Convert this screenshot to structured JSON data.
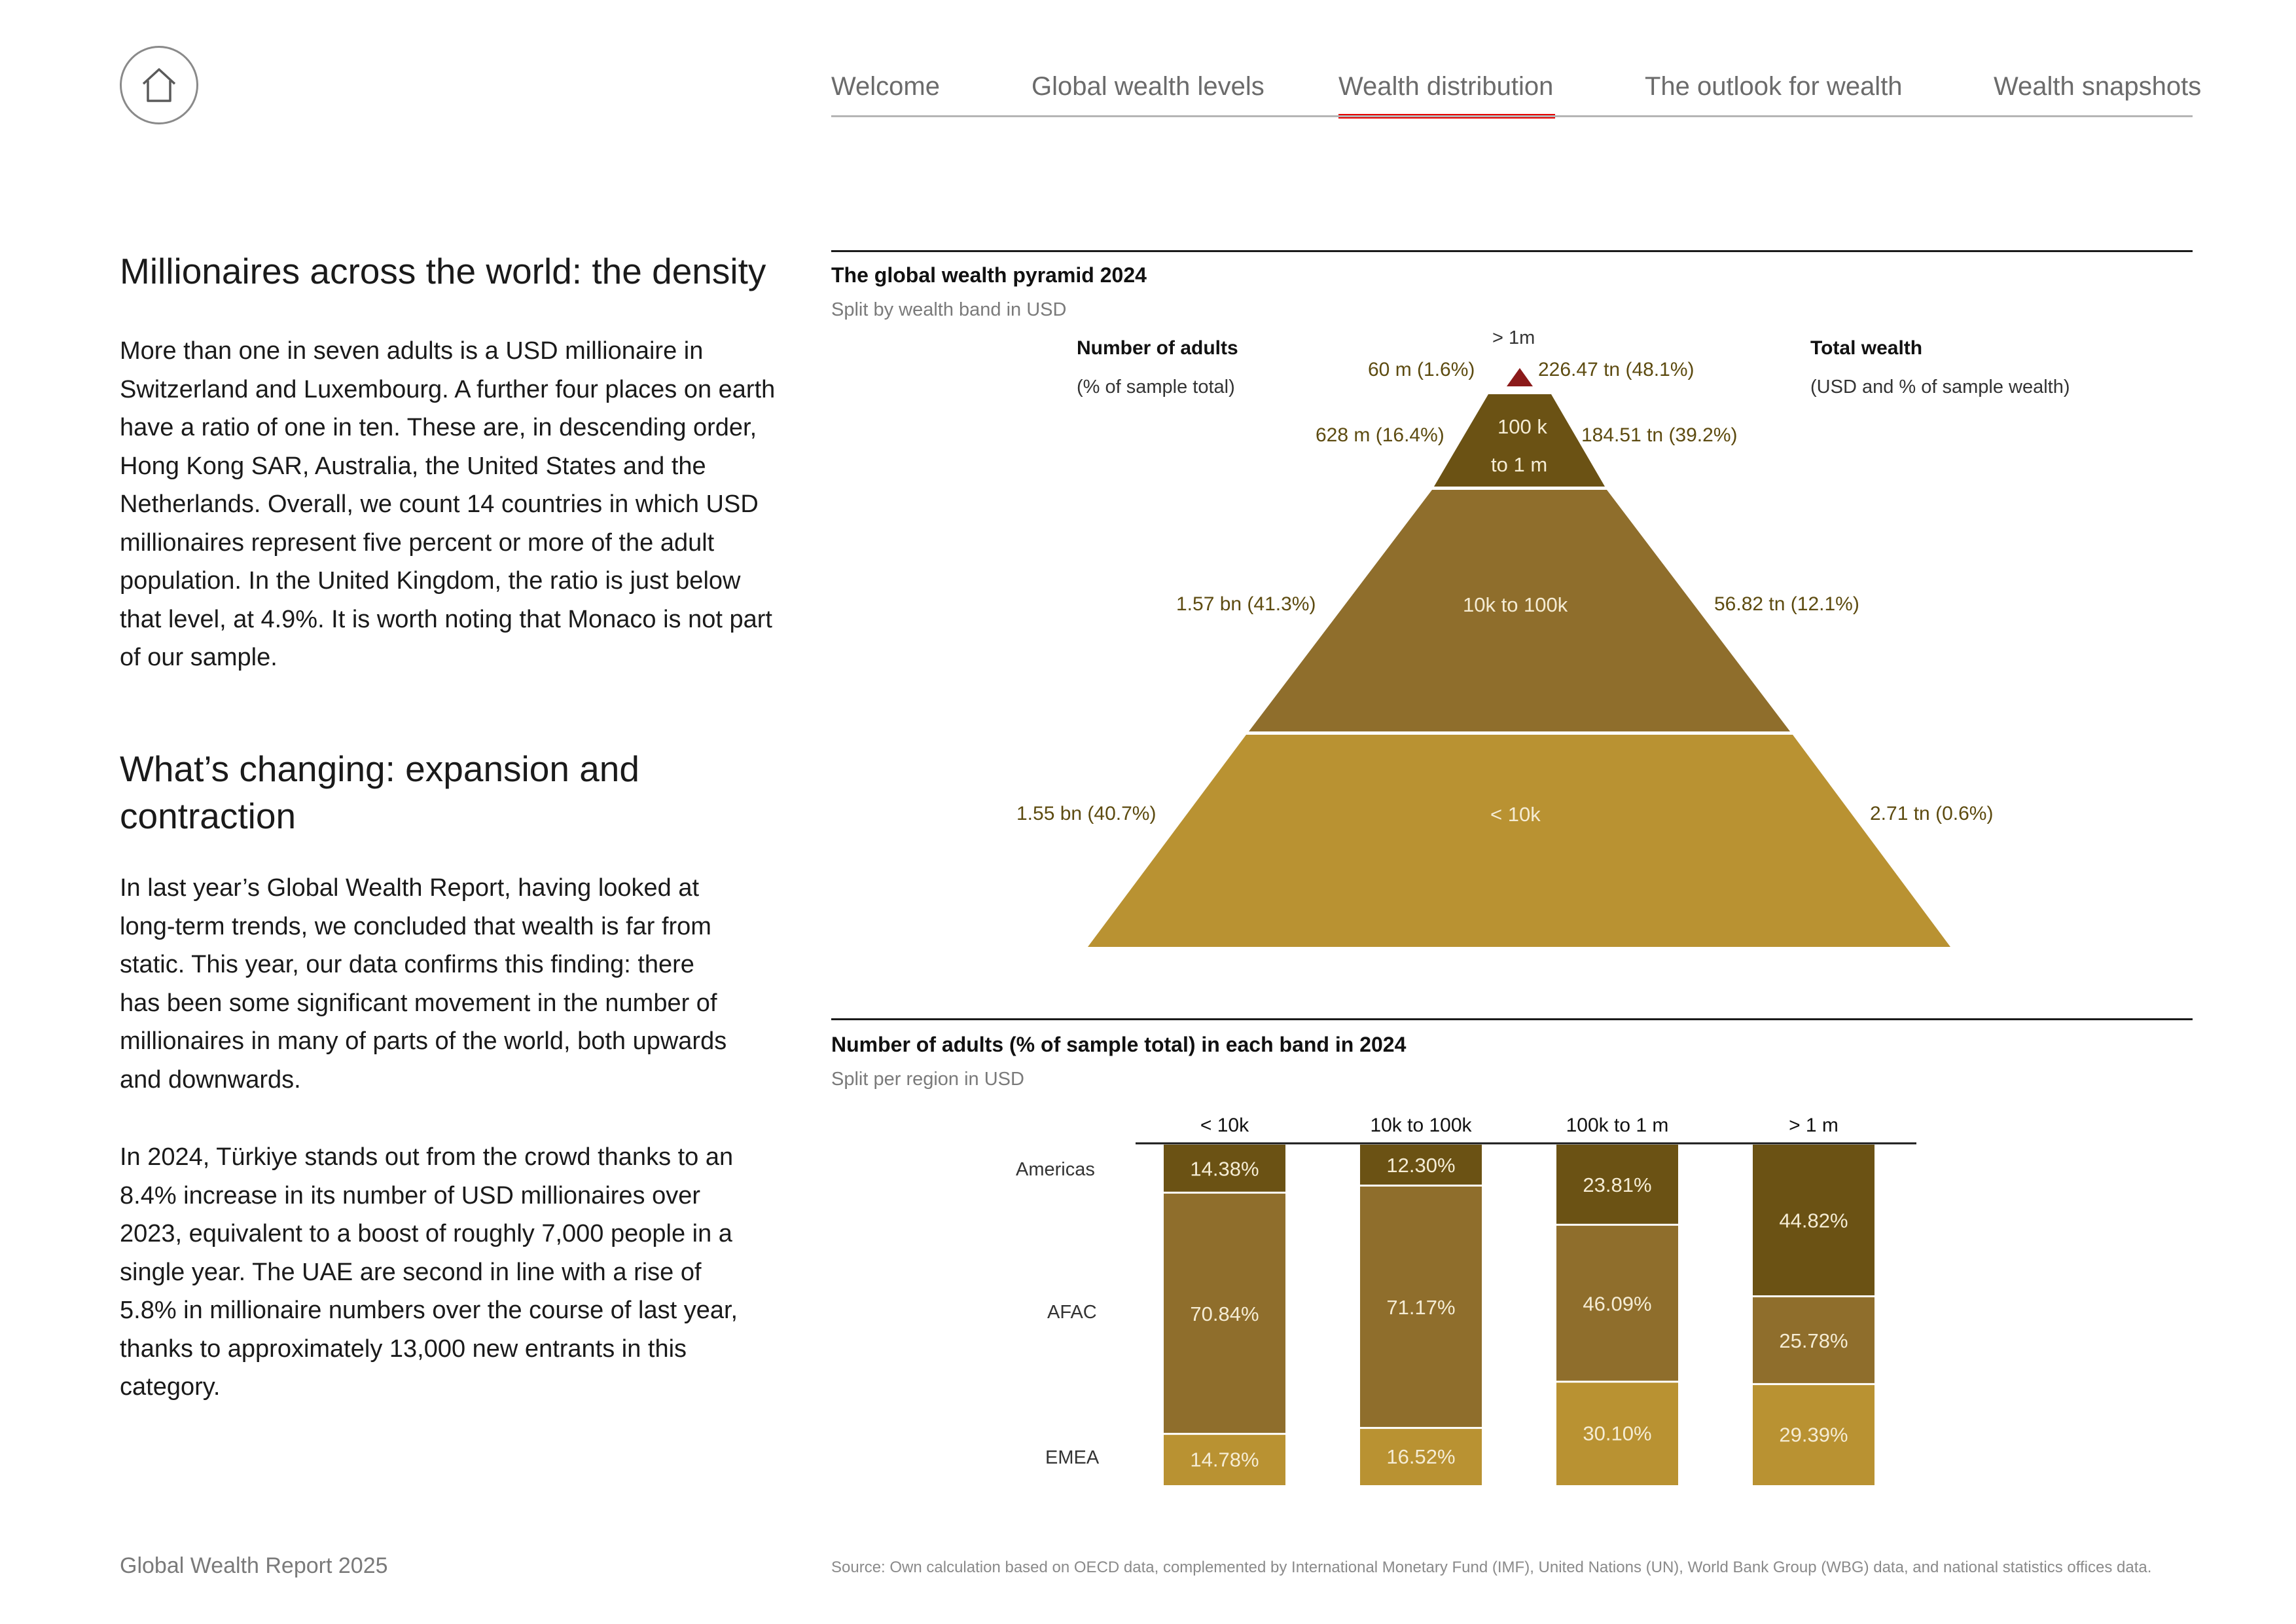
{
  "nav": {
    "items": [
      "Welcome",
      "Global wealth levels",
      "Wealth distribution",
      "The outlook for wealth",
      "Wealth snapshots"
    ],
    "active_index": 2
  },
  "colors": {
    "accent": "#e60000",
    "dark": "#6b5214",
    "mid": "#8f6e2c",
    "light": "#b99232",
    "top": "#8b1a1a"
  },
  "left": {
    "heading1": "Millionaires across the world: the density",
    "para1": "More than one in seven adults is a USD millionaire in Switzerland and Luxembourg. A further four places on earth have a ratio of one in ten. These are, in descending order, Hong Kong SAR, Australia, the United States and the Netherlands. Overall, we count 14 countries in which USD millionaires represent five percent or more of the adult population. In the United Kingdom, the ratio is just below that level, at 4.9%. It is worth noting that Monaco is not part of our sample.",
    "heading2": "What’s changing: expansion and contraction",
    "para2": "In last year’s Global Wealth Report, having looked at long-term trends, we concluded that wealth is far from static. This year, our data confirms this finding: there has been some significant movement in the number of millionaires in many of parts of the world, both upwards and downwards.",
    "para3": "In 2024, Türkiye stands out from the crowd thanks to an 8.4% increase in its number of USD millionaires over 2023, equivalent to a boost of roughly 7,000 people in a single year. The UAE are second in line with a rise of 5.8% in millionaire numbers over the course of last year, thanks to approximately 13,000 new entrants in this category."
  },
  "chart_data": [
    {
      "type": "pyramid",
      "title": "The global wealth pyramid 2024",
      "subtitle": "Split by wealth band in USD",
      "left_header": "Number of adults",
      "left_sub": "(% of sample total)",
      "right_header": "Total wealth",
      "right_sub": "(USD and % of sample wealth)",
      "bands": [
        {
          "label": "> 1m",
          "adults": "60 m (1.6%)",
          "wealth": "226.47 tn (48.1%)",
          "adults_pct": 1.6,
          "wealth_pct": 48.1
        },
        {
          "label": "100 k to 1 m",
          "label_lines": [
            "100 k",
            "to 1 m"
          ],
          "adults": "628 m (16.4%)",
          "wealth": "184.51 tn (39.2%)",
          "adults_pct": 16.4,
          "wealth_pct": 39.2
        },
        {
          "label": "10k to 100k",
          "adults": "1.57 bn (41.3%)",
          "wealth": "56.82 tn (12.1%)",
          "adults_pct": 41.3,
          "wealth_pct": 12.1
        },
        {
          "label": "< 10k",
          "adults": "1.55 bn (40.7%)",
          "wealth": "2.71 tn (0.6%)",
          "adults_pct": 40.7,
          "wealth_pct": 0.6
        }
      ]
    },
    {
      "type": "bar",
      "stacked": true,
      "title": "Number of adults (% of sample total) in each band in 2024",
      "subtitle": "Split per region in USD",
      "categories": [
        "< 10k",
        "10k to 100k",
        "100k to 1 m",
        "> 1 m"
      ],
      "series": [
        {
          "name": "Americas",
          "values": [
            14.38,
            12.3,
            23.81,
            44.82
          ],
          "labels": [
            "14.38%",
            "12.30%",
            "23.81%",
            "44.82%"
          ]
        },
        {
          "name": "AFAC",
          "values": [
            70.84,
            71.17,
            46.09,
            25.78
          ],
          "labels": [
            "70.84%",
            "71.17%",
            "46.09%",
            "25.78%"
          ]
        },
        {
          "name": "EMEA",
          "values": [
            14.78,
            16.52,
            30.1,
            29.39
          ],
          "labels": [
            "14.78%",
            "16.52%",
            "30.10%",
            "29.39%"
          ]
        }
      ]
    }
  ],
  "footer": {
    "left": "Global Wealth Report 2025",
    "source": "Source: Own calculation based on OECD data, complemented by International Monetary Fund (IMF), United Nations (UN), World Bank Group (WBG) data, and national statistics offices data."
  }
}
